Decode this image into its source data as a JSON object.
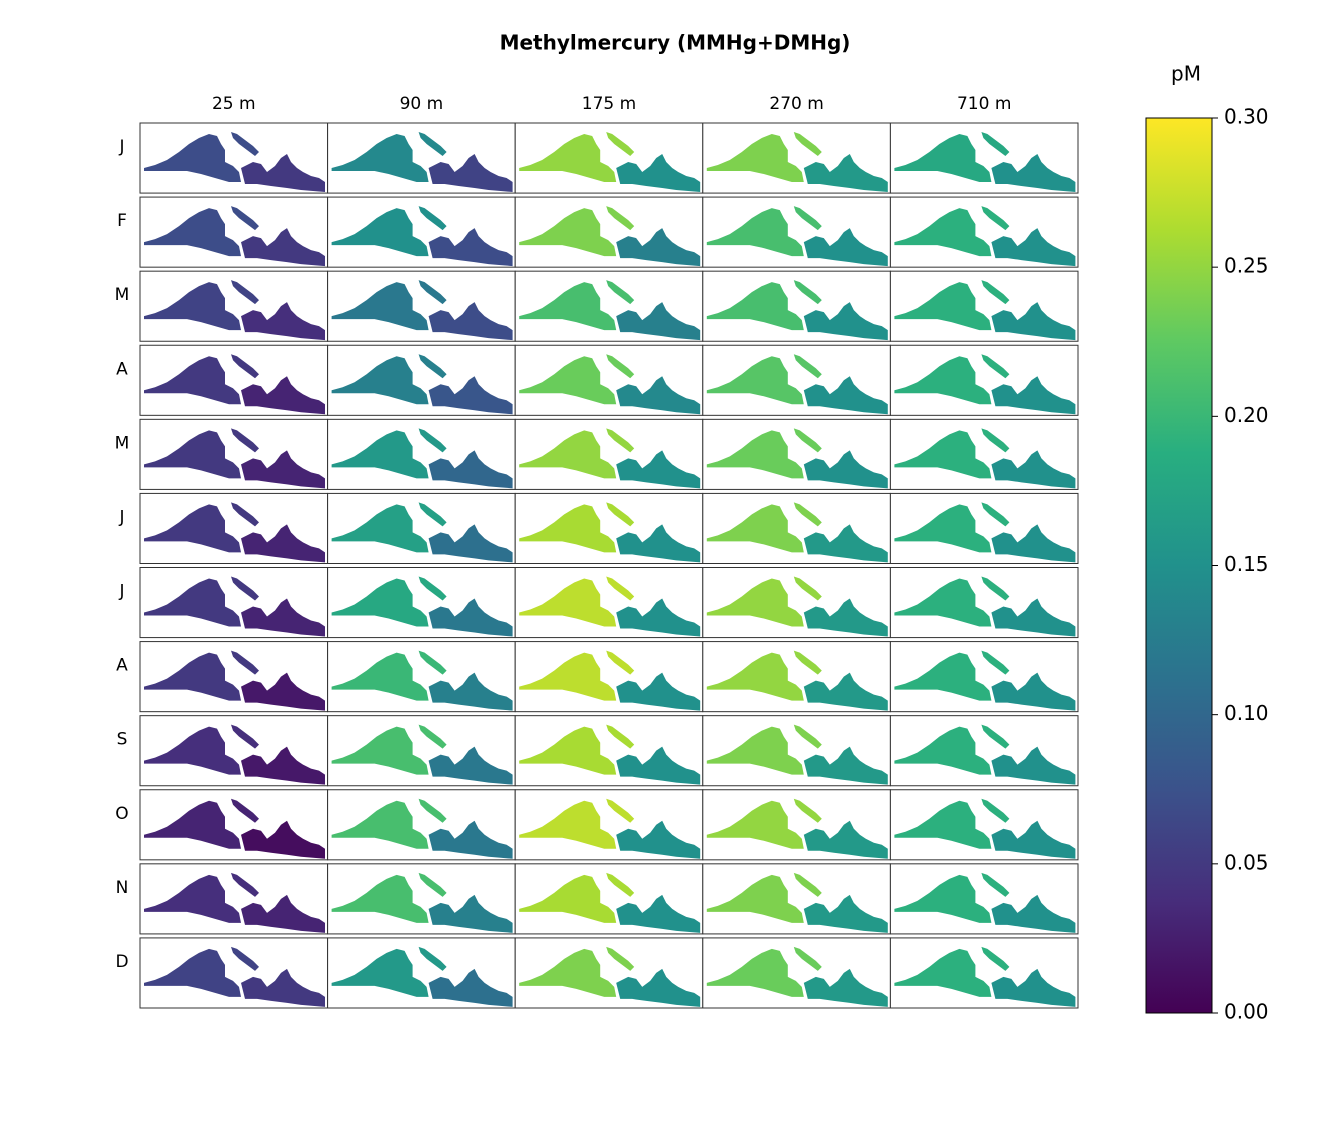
{
  "chart_data": {
    "type": "map-grid",
    "title": "Methylmercury (MMHg+DMHg)",
    "columns": [
      "25 m",
      "90 m",
      "175 m",
      "270 m",
      "710 m"
    ],
    "rows": [
      "J",
      "F",
      "M",
      "A",
      "M",
      "J",
      "J",
      "A",
      "S",
      "O",
      "N",
      "D"
    ],
    "values": [
      [
        [
          0.07,
          0.05
        ],
        [
          0.14,
          0.06
        ],
        [
          0.25,
          0.15
        ],
        [
          0.24,
          0.16
        ],
        [
          0.18,
          0.15
        ]
      ],
      [
        [
          0.07,
          0.05
        ],
        [
          0.15,
          0.07
        ],
        [
          0.24,
          0.13
        ],
        [
          0.21,
          0.15
        ],
        [
          0.19,
          0.15
        ]
      ],
      [
        [
          0.06,
          0.04
        ],
        [
          0.12,
          0.07
        ],
        [
          0.21,
          0.13
        ],
        [
          0.21,
          0.15
        ],
        [
          0.19,
          0.15
        ]
      ],
      [
        [
          0.05,
          0.03
        ],
        [
          0.13,
          0.08
        ],
        [
          0.23,
          0.14
        ],
        [
          0.22,
          0.15
        ],
        [
          0.19,
          0.15
        ]
      ],
      [
        [
          0.05,
          0.03
        ],
        [
          0.16,
          0.1
        ],
        [
          0.25,
          0.15
        ],
        [
          0.23,
          0.15
        ],
        [
          0.19,
          0.15
        ]
      ],
      [
        [
          0.05,
          0.03
        ],
        [
          0.17,
          0.11
        ],
        [
          0.26,
          0.15
        ],
        [
          0.24,
          0.16
        ],
        [
          0.19,
          0.15
        ]
      ],
      [
        [
          0.05,
          0.03
        ],
        [
          0.18,
          0.12
        ],
        [
          0.27,
          0.15
        ],
        [
          0.25,
          0.16
        ],
        [
          0.19,
          0.15
        ]
      ],
      [
        [
          0.05,
          0.02
        ],
        [
          0.2,
          0.13
        ],
        [
          0.27,
          0.15
        ],
        [
          0.25,
          0.16
        ],
        [
          0.19,
          0.15
        ]
      ],
      [
        [
          0.04,
          0.02
        ],
        [
          0.21,
          0.12
        ],
        [
          0.26,
          0.15
        ],
        [
          0.24,
          0.16
        ],
        [
          0.19,
          0.15
        ]
      ],
      [
        [
          0.03,
          0.01
        ],
        [
          0.21,
          0.12
        ],
        [
          0.27,
          0.15
        ],
        [
          0.25,
          0.16
        ],
        [
          0.19,
          0.15
        ]
      ],
      [
        [
          0.04,
          0.03
        ],
        [
          0.21,
          0.13
        ],
        [
          0.26,
          0.15
        ],
        [
          0.24,
          0.16
        ],
        [
          0.19,
          0.15
        ]
      ],
      [
        [
          0.06,
          0.05
        ],
        [
          0.16,
          0.11
        ],
        [
          0.24,
          0.15
        ],
        [
          0.23,
          0.16
        ],
        [
          0.19,
          0.15
        ]
      ]
    ],
    "colormap": "viridis",
    "colorbar_label": "pM",
    "clim": [
      0,
      0.3
    ],
    "cticks": [
      {
        "value": 0,
        "label": "0.00"
      },
      0.05,
      {
        "value": 0.1,
        "label": "0.10"
      },
      0.15,
      {
        "value": 0.2,
        "label": "0.20"
      },
      0.25,
      {
        "value": 0.3,
        "label": "0.30"
      }
    ]
  }
}
